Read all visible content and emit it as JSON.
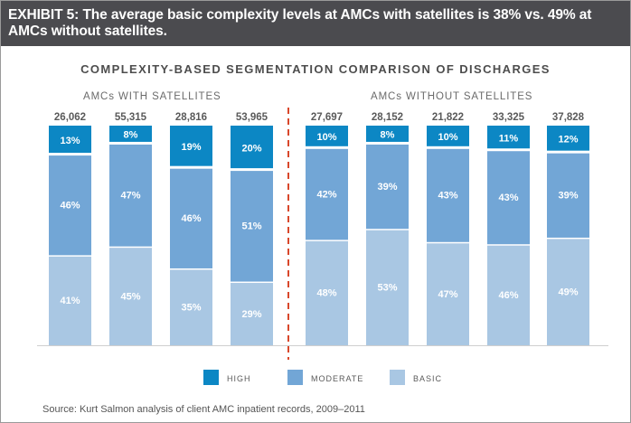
{
  "exhibit_title": "EXHIBIT 5: The average basic complexity levels at AMCs with satellites is 38% vs. 49% at AMCs without satellites.",
  "source": "Source: Kurt Salmon analysis of client AMC inpatient records, 2009–2011",
  "chart_data": {
    "type": "bar",
    "title": "COMPLEXITY-BASED SEGMENTATION COMPARISON OF DISCHARGES",
    "stacked": "100%",
    "groups": [
      {
        "label": "AMCs WITH SATELLITES",
        "bars": [
          0,
          1,
          2,
          3
        ]
      },
      {
        "label": "AMCs WITHOUT SATELLITES",
        "bars": [
          4,
          5,
          6,
          7,
          8
        ]
      }
    ],
    "totals": [
      "26,062",
      "55,315",
      "28,816",
      "53,965",
      "27,697",
      "28,152",
      "21,822",
      "33,325",
      "37,828"
    ],
    "series": [
      {
        "name": "BASIC",
        "color": "#a9c7e3",
        "values": [
          41,
          45,
          35,
          29,
          48,
          53,
          47,
          46,
          49
        ]
      },
      {
        "name": "MODERATE",
        "color": "#72a6d6",
        "values": [
          46,
          47,
          46,
          51,
          42,
          39,
          43,
          43,
          39
        ]
      },
      {
        "name": "HIGH",
        "color": "#0c87c4",
        "values": [
          13,
          8,
          19,
          20,
          10,
          8,
          10,
          11,
          12
        ]
      }
    ],
    "legend_order": [
      "HIGH",
      "MODERATE",
      "BASIC"
    ],
    "legend_position": "bottom",
    "ylim": [
      0,
      100
    ],
    "separator_color": "#d9472b"
  }
}
